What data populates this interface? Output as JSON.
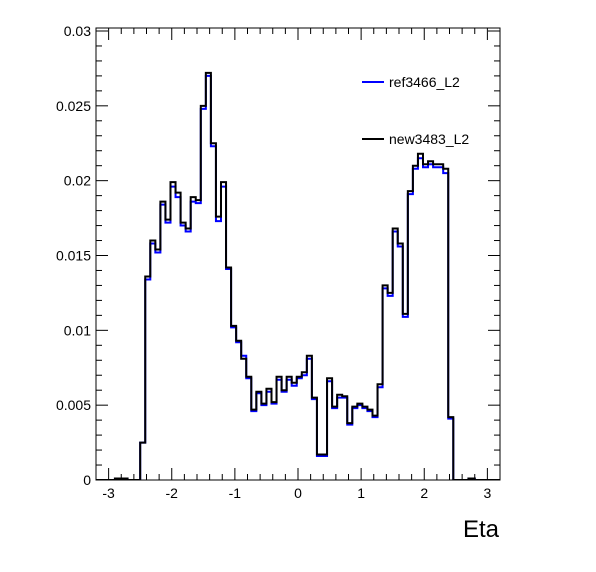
{
  "chart_data": {
    "type": "line",
    "title": "",
    "xlabel": "Eta",
    "ylabel": "",
    "xlim": [
      -3.2,
      3.2
    ],
    "ylim": [
      0,
      0.0302
    ],
    "x_ticks": [
      -3,
      -2,
      -1,
      0,
      1,
      2,
      3
    ],
    "x_tick_labels": [
      "-3",
      "-2",
      "-1",
      "0",
      "1",
      "2",
      "3"
    ],
    "y_ticks": [
      0,
      0.005,
      0.01,
      0.015,
      0.02,
      0.025,
      0.03
    ],
    "y_tick_labels": [
      "0",
      "0.005",
      "0.01",
      "0.015",
      "0.02",
      "0.025",
      "0.03"
    ],
    "grid": false,
    "legend_position": "top-right",
    "bin_edges": [
      -3.2,
      -3.1,
      -3.0,
      -2.9,
      -2.8,
      -2.7,
      -2.6,
      -2.5,
      -2.42,
      -2.34,
      -2.26,
      -2.18,
      -2.1,
      -2.02,
      -1.94,
      -1.86,
      -1.78,
      -1.7,
      -1.62,
      -1.54,
      -1.46,
      -1.38,
      -1.3,
      -1.22,
      -1.14,
      -1.06,
      -0.98,
      -0.9,
      -0.82,
      -0.74,
      -0.66,
      -0.58,
      -0.5,
      -0.42,
      -0.34,
      -0.26,
      -0.18,
      -0.1,
      -0.02,
      0.06,
      0.14,
      0.22,
      0.3,
      0.38,
      0.46,
      0.54,
      0.62,
      0.7,
      0.78,
      0.86,
      0.94,
      1.02,
      1.1,
      1.18,
      1.26,
      1.34,
      1.42,
      1.5,
      1.58,
      1.66,
      1.74,
      1.82,
      1.9,
      1.98,
      2.06,
      2.14,
      2.22,
      2.3,
      2.38,
      2.46,
      2.54,
      2.62,
      2.7,
      2.8,
      2.9,
      3.0,
      3.1,
      3.2
    ],
    "series": [
      {
        "name": "ref3466_L2",
        "color": "#0000ff",
        "values": [
          0,
          0,
          0,
          0.0001,
          0.0001,
          0,
          0,
          0.0025,
          0.0134,
          0.0158,
          0.0152,
          0.0184,
          0.0172,
          0.0196,
          0.0189,
          0.017,
          0.0166,
          0.0186,
          0.0185,
          0.0248,
          0.027,
          0.0223,
          0.0173,
          0.0196,
          0.0141,
          0.0102,
          0.0092,
          0.0083,
          0.0068,
          0.0046,
          0.0058,
          0.005,
          0.0059,
          0.0051,
          0.0067,
          0.0059,
          0.0067,
          0.0063,
          0.0068,
          0.007,
          0.0081,
          0.0054,
          0.0016,
          0.0016,
          0.0066,
          0.0048,
          0.0055,
          0.0055,
          0.0037,
          0.0048,
          0.005,
          0.0048,
          0.0046,
          0.0042,
          0.0062,
          0.0128,
          0.0123,
          0.0166,
          0.0156,
          0.0109,
          0.0191,
          0.0208,
          0.0215,
          0.0209,
          0.0211,
          0.0209,
          0.0209,
          0.0205,
          0.0041,
          0,
          0,
          0,
          0.0001,
          0,
          0,
          0,
          0
        ],
        "note_clipped": false
      },
      {
        "name": "new3483_L2",
        "color": "#000000",
        "values": [
          0,
          0,
          0,
          0.0001,
          0.0001,
          0,
          0,
          0.0025,
          0.0136,
          0.016,
          0.0154,
          0.0186,
          0.0174,
          0.0199,
          0.0192,
          0.0172,
          0.0168,
          0.0189,
          0.0187,
          0.025,
          0.0272,
          0.0225,
          0.0176,
          0.0199,
          0.0142,
          0.0103,
          0.0093,
          0.0081,
          0.0069,
          0.0047,
          0.0059,
          0.0051,
          0.0061,
          0.0052,
          0.0069,
          0.006,
          0.0069,
          0.0065,
          0.0069,
          0.0072,
          0.0083,
          0.0055,
          0.0017,
          0.0017,
          0.0068,
          0.0049,
          0.0057,
          0.0056,
          0.0038,
          0.0049,
          0.0051,
          0.0049,
          0.0047,
          0.0043,
          0.0064,
          0.013,
          0.0125,
          0.0168,
          0.0158,
          0.0111,
          0.0193,
          0.021,
          0.0218,
          0.0211,
          0.0213,
          0.0211,
          0.0211,
          0.0208,
          0.0042,
          0,
          0,
          0,
          0.0001,
          0,
          0,
          0,
          0
        ],
        "note_clipped": false
      }
    ]
  }
}
